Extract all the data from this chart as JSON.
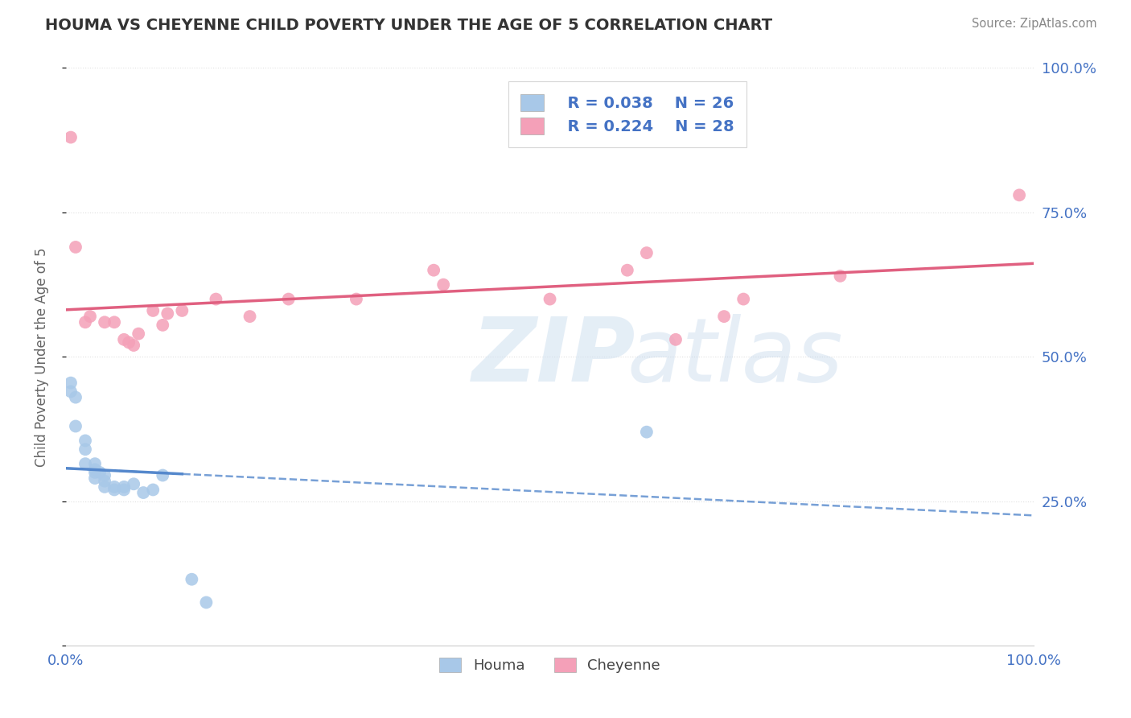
{
  "title": "HOUMA VS CHEYENNE CHILD POVERTY UNDER THE AGE OF 5 CORRELATION CHART",
  "source": "Source: ZipAtlas.com",
  "ylabel": "Child Poverty Under the Age of 5",
  "xlim": [
    0,
    1
  ],
  "ylim": [
    0,
    1
  ],
  "houma_color": "#a8c8e8",
  "cheyenne_color": "#f4a0b8",
  "houma_line_color": "#5588cc",
  "cheyenne_line_color": "#e06080",
  "legend_r_houma": "R = 0.038",
  "legend_n_houma": "N = 26",
  "legend_r_cheyenne": "R = 0.224",
  "legend_n_cheyenne": "N = 28",
  "background_color": "#ffffff",
  "grid_color": "#e0e0e0",
  "houma_x": [
    0.005,
    0.005,
    0.01,
    0.01,
    0.02,
    0.02,
    0.02,
    0.03,
    0.03,
    0.03,
    0.03,
    0.035,
    0.04,
    0.04,
    0.04,
    0.05,
    0.05,
    0.06,
    0.06,
    0.07,
    0.08,
    0.09,
    0.1,
    0.13,
    0.145,
    0.6
  ],
  "houma_y": [
    0.455,
    0.44,
    0.43,
    0.38,
    0.355,
    0.34,
    0.315,
    0.315,
    0.305,
    0.3,
    0.29,
    0.3,
    0.295,
    0.285,
    0.275,
    0.275,
    0.27,
    0.275,
    0.27,
    0.28,
    0.265,
    0.27,
    0.295,
    0.115,
    0.075,
    0.37
  ],
  "cheyenne_x": [
    0.005,
    0.01,
    0.02,
    0.025,
    0.04,
    0.05,
    0.06,
    0.065,
    0.07,
    0.075,
    0.09,
    0.1,
    0.105,
    0.12,
    0.155,
    0.19,
    0.23,
    0.3,
    0.38,
    0.39,
    0.5,
    0.58,
    0.6,
    0.63,
    0.68,
    0.7,
    0.8,
    0.985
  ],
  "cheyenne_y": [
    0.88,
    0.69,
    0.56,
    0.57,
    0.56,
    0.56,
    0.53,
    0.525,
    0.52,
    0.54,
    0.58,
    0.555,
    0.575,
    0.58,
    0.6,
    0.57,
    0.6,
    0.6,
    0.65,
    0.625,
    0.6,
    0.65,
    0.68,
    0.53,
    0.57,
    0.6,
    0.64,
    0.78
  ],
  "axis_label_color": "#4472c4",
  "title_color": "#333333",
  "source_color": "#888888",
  "ylabel_color": "#666666"
}
